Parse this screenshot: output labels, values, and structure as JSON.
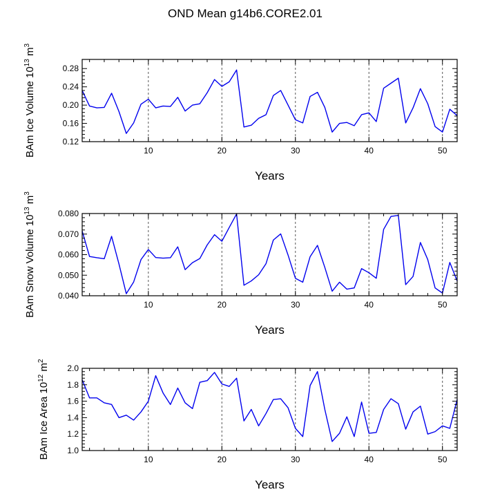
{
  "title": "OND Mean g14b6.CORE2.01",
  "colors": {
    "line": "#0000ee",
    "axis": "#000000",
    "grid": "#555555"
  },
  "chart_data": [
    {
      "type": "line",
      "name": "ice-volume",
      "xlabel": "Years",
      "ylabel_main": "BAm Ice Volume 10",
      "ylabel_exp": "13",
      "ylabel_unit": " m",
      "ylabel_unit_exp": "3",
      "xlim": [
        1,
        52
      ],
      "ylim": [
        0.12,
        0.3
      ],
      "yticks": [
        0.12,
        0.16,
        0.2,
        0.24,
        0.28
      ],
      "ytick_labels": [
        "0.12",
        "0.16",
        "0.20",
        "0.24",
        "0.28"
      ],
      "xticks": [
        10,
        20,
        30,
        40,
        50
      ],
      "xtick_labels": [
        "10",
        "20",
        "30",
        "40",
        "50"
      ],
      "gridlines_x": [
        10,
        20,
        30,
        40,
        50
      ],
      "x": [
        1,
        2,
        3,
        4,
        5,
        6,
        7,
        8,
        9,
        10,
        11,
        12,
        13,
        14,
        15,
        16,
        17,
        18,
        19,
        20,
        21,
        22,
        23,
        24,
        25,
        26,
        27,
        28,
        29,
        30,
        31,
        32,
        33,
        34,
        35,
        36,
        37,
        38,
        39,
        40,
        41,
        42,
        43,
        44,
        45,
        46,
        47,
        48,
        49,
        50,
        51,
        52
      ],
      "values": [
        0.232,
        0.198,
        0.194,
        0.195,
        0.226,
        0.186,
        0.138,
        0.161,
        0.202,
        0.213,
        0.194,
        0.198,
        0.197,
        0.217,
        0.187,
        0.2,
        0.203,
        0.227,
        0.256,
        0.241,
        0.251,
        0.277,
        0.152,
        0.156,
        0.171,
        0.179,
        0.221,
        0.232,
        0.2,
        0.168,
        0.161,
        0.219,
        0.228,
        0.195,
        0.141,
        0.16,
        0.162,
        0.155,
        0.179,
        0.183,
        0.164,
        0.237,
        0.248,
        0.259,
        0.161,
        0.194,
        0.236,
        0.203,
        0.153,
        0.141,
        0.191,
        0.177
      ]
    },
    {
      "type": "line",
      "name": "snow-volume",
      "xlabel": "Years",
      "ylabel_main": "BAm Snow Volume 10",
      "ylabel_exp": "13",
      "ylabel_unit": " m",
      "ylabel_unit_exp": "3",
      "xlim": [
        1,
        52
      ],
      "ylim": [
        0.04,
        0.08
      ],
      "yticks": [
        0.04,
        0.05,
        0.06,
        0.07,
        0.08
      ],
      "ytick_labels": [
        "0.040",
        "0.050",
        "0.060",
        "0.070",
        "0.080"
      ],
      "xticks": [
        10,
        20,
        30,
        40,
        50
      ],
      "xtick_labels": [
        "10",
        "20",
        "30",
        "40",
        "50"
      ],
      "gridlines_x": [
        10,
        20,
        30,
        40,
        50
      ],
      "x": [
        1,
        2,
        3,
        4,
        5,
        6,
        7,
        8,
        9,
        10,
        11,
        12,
        13,
        14,
        15,
        16,
        17,
        18,
        19,
        20,
        21,
        22,
        23,
        24,
        25,
        26,
        27,
        28,
        29,
        30,
        31,
        32,
        33,
        34,
        35,
        36,
        37,
        38,
        39,
        40,
        41,
        42,
        43,
        44,
        45,
        46,
        47,
        48,
        49,
        50,
        51,
        52
      ],
      "values": [
        0.0715,
        0.0591,
        0.0585,
        0.058,
        0.0689,
        0.0555,
        0.041,
        0.0467,
        0.0576,
        0.0625,
        0.0586,
        0.0583,
        0.0585,
        0.0638,
        0.0527,
        0.0561,
        0.0581,
        0.0647,
        0.0697,
        0.0665,
        0.0732,
        0.0798,
        0.0451,
        0.0472,
        0.0502,
        0.0556,
        0.0671,
        0.0701,
        0.0598,
        0.0485,
        0.0466,
        0.059,
        0.0645,
        0.0538,
        0.0422,
        0.0466,
        0.0432,
        0.0438,
        0.0532,
        0.0512,
        0.0485,
        0.0723,
        0.0786,
        0.0791,
        0.0454,
        0.0494,
        0.0659,
        0.0576,
        0.0438,
        0.0413,
        0.0562,
        0.0472
      ]
    },
    {
      "type": "line",
      "name": "ice-area",
      "xlabel": "Years",
      "ylabel_main": "BAm Ice Area 10",
      "ylabel_exp": "12",
      "ylabel_unit": " m",
      "ylabel_unit_exp": "2",
      "xlim": [
        1,
        52
      ],
      "ylim": [
        1.0,
        2.0
      ],
      "yticks": [
        1.0,
        1.2,
        1.4,
        1.6,
        1.8,
        2.0
      ],
      "ytick_labels": [
        "1.0",
        "1.2",
        "1.4",
        "1.6",
        "1.8",
        "2.0"
      ],
      "xticks": [
        10,
        20,
        30,
        40,
        50
      ],
      "xtick_labels": [
        "10",
        "20",
        "30",
        "40",
        "50"
      ],
      "gridlines_x": [
        10,
        20,
        30,
        40,
        50
      ],
      "x": [
        1,
        2,
        3,
        4,
        5,
        6,
        7,
        8,
        9,
        10,
        11,
        12,
        13,
        14,
        15,
        16,
        17,
        18,
        19,
        20,
        21,
        22,
        23,
        24,
        25,
        26,
        27,
        28,
        29,
        30,
        31,
        32,
        33,
        34,
        35,
        36,
        37,
        38,
        39,
        40,
        41,
        42,
        43,
        44,
        45,
        46,
        47,
        48,
        49,
        50,
        51,
        52
      ],
      "values": [
        1.86,
        1.64,
        1.64,
        1.58,
        1.56,
        1.4,
        1.43,
        1.37,
        1.47,
        1.6,
        1.91,
        1.7,
        1.56,
        1.76,
        1.58,
        1.51,
        1.83,
        1.85,
        1.95,
        1.81,
        1.78,
        1.88,
        1.36,
        1.5,
        1.3,
        1.45,
        1.62,
        1.63,
        1.52,
        1.27,
        1.17,
        1.79,
        1.96,
        1.5,
        1.11,
        1.21,
        1.41,
        1.17,
        1.59,
        1.21,
        1.22,
        1.5,
        1.63,
        1.57,
        1.26,
        1.47,
        1.54,
        1.2,
        1.23,
        1.3,
        1.27,
        1.62
      ]
    }
  ]
}
